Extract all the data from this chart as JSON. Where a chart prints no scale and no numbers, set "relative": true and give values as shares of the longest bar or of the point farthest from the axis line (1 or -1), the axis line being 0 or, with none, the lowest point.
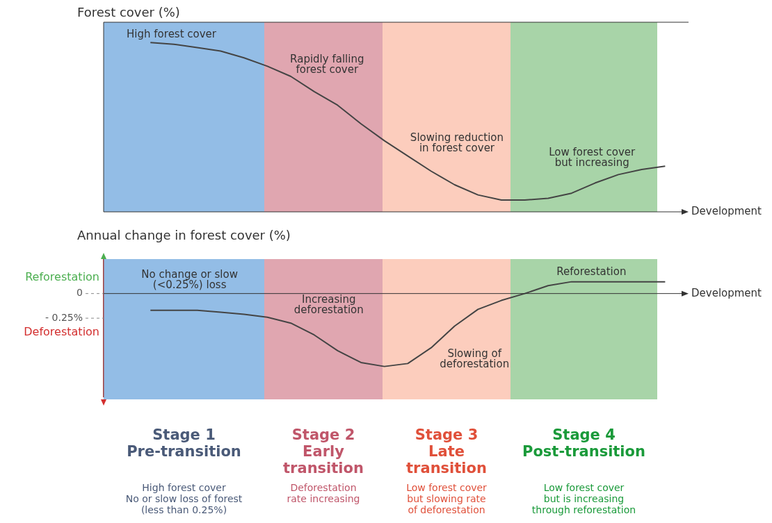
{
  "chart_data": [
    {
      "type": "line",
      "ylabel": "Forest cover (%)",
      "xlabel": "Development",
      "relative": true,
      "tick_labels": false,
      "marker": "none",
      "categories": [
        null,
        null,
        null,
        null,
        null,
        null,
        null,
        null,
        null,
        null,
        null,
        null,
        null,
        null,
        null,
        null,
        null,
        null,
        null,
        null,
        null,
        null,
        null,
        null,
        null,
        null
      ],
      "series": [
        {
          "color": "#444444",
          "values": [
            null,
            null,
            1,
            0.99,
            0.97,
            0.95,
            0.91,
            0.86,
            0.8,
            0.71,
            0.63,
            0.52,
            0.42,
            0.33,
            0.24,
            0.16,
            0.1,
            0.07,
            0.07,
            0.08,
            0.11,
            0.17,
            0.22,
            0.25,
            0.27,
            null
          ]
        }
      ],
      "annotations": [
        "High forest cover",
        "Rapidly falling\nforest cover",
        "Slowing reduction\nin forest cover",
        "Low forest cover\nbut increasing"
      ]
    },
    {
      "type": "line",
      "ylabel": "Annual change in forest cover (%)",
      "xlabel": "Development",
      "ylim": [
        -1.05,
        0.35
      ],
      "tick_labels": "y",
      "marker": "none",
      "yticks": [
        {
          "value": 0,
          "label": "0"
        },
        {
          "value": -0.25,
          "label": "- 0.25%"
        }
      ],
      "categories": [
        null,
        null,
        null,
        null,
        null,
        null,
        null,
        null,
        null,
        null,
        null,
        null,
        null,
        null,
        null,
        null,
        null,
        null,
        null,
        null,
        null,
        null,
        null,
        null,
        null,
        null
      ],
      "series": [
        {
          "color": "#444444",
          "values": [
            null,
            null,
            -0.17,
            -0.17,
            -0.17,
            -0.19,
            -0.21,
            -0.24,
            -0.3,
            -0.42,
            -0.58,
            -0.7,
            -0.74,
            -0.71,
            -0.55,
            -0.33,
            -0.16,
            -0.07,
            0,
            0.08,
            0.12,
            0.12,
            0.12,
            0.12,
            0.12,
            null
          ]
        }
      ],
      "annotations": [
        "Reforestation",
        "Deforestation",
        "No change or slow\n(<0.25%) loss",
        "Increasing\ndeforestation",
        "Slowing of\ndeforestation",
        "Reforestation"
      ]
    },
    {
      "type": "other",
      "annotations": [
        "Stage 1\nPre-transition",
        "High forest cover\nNo or slow loss of forest\n(less than 0.25%)",
        "Stage 2\nEarly\ntransition",
        "Deforestation\nrate increasing",
        "Stage 3\nLate\ntransition",
        "Low forest cover\nbut slowing rate\nof deforestation",
        "Stage 4\nPost-transition",
        "Low forest cover\nbut is increasing\nthrough reforestation"
      ]
    }
  ]
}
